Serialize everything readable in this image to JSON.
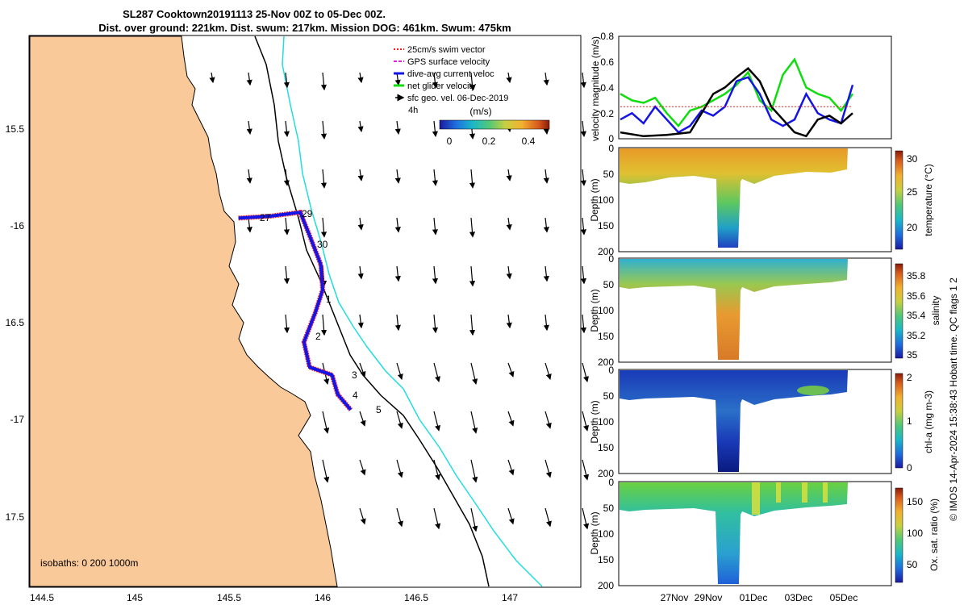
{
  "header": {
    "title_line1": "SL287 Cooktown20191113 25-Nov 00Z to 05-Dec 00Z.",
    "title_line2": "Dist. over ground: 221km. Dist. swum: 217km. Mission DOG: 461km. Swum: 475km"
  },
  "colors": {
    "land": "#fac99a",
    "trackRed": "#ff1a1a",
    "trackBlue": "#1414e6",
    "netGreen": "#10dd10",
    "isobath200": "#000000",
    "isobath1000": "#22dddd"
  },
  "map": {
    "lonTicks": [
      "144.5",
      "145",
      "145.5",
      "146",
      "146.5",
      "147"
    ],
    "latTicks": [
      "15.5",
      "-16",
      "16.5",
      "-17",
      "17.5"
    ],
    "isobathsText": "isobaths: 0   200  1000m",
    "legend": [
      {
        "label": "25cm/s swim vector",
        "color": "#ff1a1a",
        "style": "dotted"
      },
      {
        "label": "GPS surface velocity",
        "color": "#e020e0",
        "style": "dashed"
      },
      {
        "label": "dive-avg current veloc",
        "color": "#1414e6",
        "style": "solid"
      },
      {
        "label": "net glider velocity",
        "color": "#10dd10",
        "style": "solid"
      },
      {
        "label": "sfc geo. vel. 06-Dec-2019",
        "color": "#000000",
        "style": "arrow"
      }
    ],
    "scaleNote": "4h",
    "colorbarTitle": "(m/s)",
    "colorbarTicks": [
      "0",
      "0.2",
      "0.4"
    ],
    "trackLabels": [
      "29",
      "27",
      "30",
      "1",
      "2",
      "3",
      "4",
      "5"
    ],
    "track": [
      {
        "lon": 145.55,
        "lat": -15.96
      },
      {
        "lon": 145.72,
        "lat": -15.95
      },
      {
        "lon": 145.88,
        "lat": -15.93
      },
      {
        "lon": 145.93,
        "lat": -16.05
      },
      {
        "lon": 145.99,
        "lat": -16.2
      },
      {
        "lon": 146.0,
        "lat": -16.33
      },
      {
        "lon": 145.96,
        "lat": -16.45
      },
      {
        "lon": 145.9,
        "lat": -16.6
      },
      {
        "lon": 145.93,
        "lat": -16.73
      },
      {
        "lon": 146.05,
        "lat": -16.77
      },
      {
        "lon": 146.08,
        "lat": -16.87
      },
      {
        "lon": 146.15,
        "lat": -16.95
      }
    ]
  },
  "panels": {
    "velocity": {
      "ylabel": "velocity magnitude (m/s)",
      "yTicks": [
        "0",
        "0.2",
        "0.4",
        "0.6",
        "0.8"
      ],
      "ylim": [
        0,
        0.8
      ],
      "xlim_days": [
        0,
        10
      ],
      "series": [
        {
          "name": "net glider velocity",
          "color": "#10dd10",
          "days": [
            0,
            0.5,
            1,
            1.5,
            2,
            2.5,
            3,
            3.5,
            4,
            4.5,
            5,
            5.5,
            6,
            6.5,
            7,
            7.5,
            8,
            8.5,
            9,
            9.5,
            10
          ],
          "values": [
            0.35,
            0.3,
            0.28,
            0.32,
            0.2,
            0.1,
            0.22,
            0.25,
            0.3,
            0.35,
            0.42,
            0.52,
            0.3,
            0.22,
            0.5,
            0.62,
            0.4,
            0.35,
            0.32,
            0.22,
            0.35
          ]
        },
        {
          "name": "dive-avg current veloc",
          "color": "#1414e6",
          "days": [
            0,
            0.5,
            1,
            1.5,
            2,
            2.5,
            3,
            3.5,
            4,
            4.5,
            5,
            5.5,
            6,
            6.5,
            7,
            7.5,
            8,
            8.5,
            9,
            9.5,
            10
          ],
          "values": [
            0.15,
            0.2,
            0.12,
            0.25,
            0.15,
            0.05,
            0.1,
            0.22,
            0.18,
            0.25,
            0.45,
            0.48,
            0.35,
            0.15,
            0.1,
            0.15,
            0.35,
            0.2,
            0.15,
            0.12,
            0.42
          ]
        },
        {
          "name": "sfc geo speed",
          "color": "#000000",
          "days": [
            0,
            1,
            2,
            3,
            3.5,
            4,
            4.5,
            5,
            5.5,
            6,
            6.5,
            7,
            7.5,
            8,
            8.5,
            9,
            9.5,
            10
          ],
          "values": [
            0.05,
            0.02,
            0.03,
            0.05,
            0.2,
            0.35,
            0.4,
            0.48,
            0.55,
            0.45,
            0.25,
            0.15,
            0.05,
            0.02,
            0.15,
            0.18,
            0.12,
            0.2
          ]
        },
        {
          "name": "25cm/s swim vector",
          "color": "#ff1a1a",
          "days": [
            0,
            10
          ],
          "values": [
            0.25,
            0.25
          ]
        }
      ]
    },
    "temperature": {
      "ylabel": "Depth (m)",
      "cbLabel": "temperature (°C)",
      "cbTicks": [
        "20",
        "25",
        "30"
      ],
      "cbRange": [
        17,
        31
      ]
    },
    "salinity": {
      "ylabel": "Depth (m)",
      "cbLabel": "salinity",
      "cbTicks": [
        "35",
        "35.2",
        "35.4",
        "35.6",
        "35.8"
      ],
      "cbRange": [
        34.95,
        35.9
      ]
    },
    "chla": {
      "ylabel": "Depth (m)",
      "cbLabel": "chl-a (mg m-3)",
      "cbTicks": [
        "0",
        "1",
        "2"
      ],
      "cbRange": [
        0,
        2
      ]
    },
    "oxygen": {
      "ylabel": "Depth (m)",
      "cbLabel": "Ox. sat. ratio (%)",
      "cbTicks": [
        "50",
        "100",
        "150"
      ],
      "cbRange": [
        25,
        175
      ]
    },
    "depthTicks": [
      "0",
      "50",
      "100",
      "150",
      "200"
    ],
    "depthRange": [
      0,
      200
    ],
    "timeTicks": [
      "27Nov",
      "29Nov",
      "01Dec",
      "03Dec",
      "05Dec"
    ],
    "timeTickDays": [
      2,
      4,
      6,
      8,
      10
    ]
  },
  "footer": {
    "credit": "© IMOS 14-Apr-2024 15:38:43 Hobart time. QC flags 1  2"
  }
}
